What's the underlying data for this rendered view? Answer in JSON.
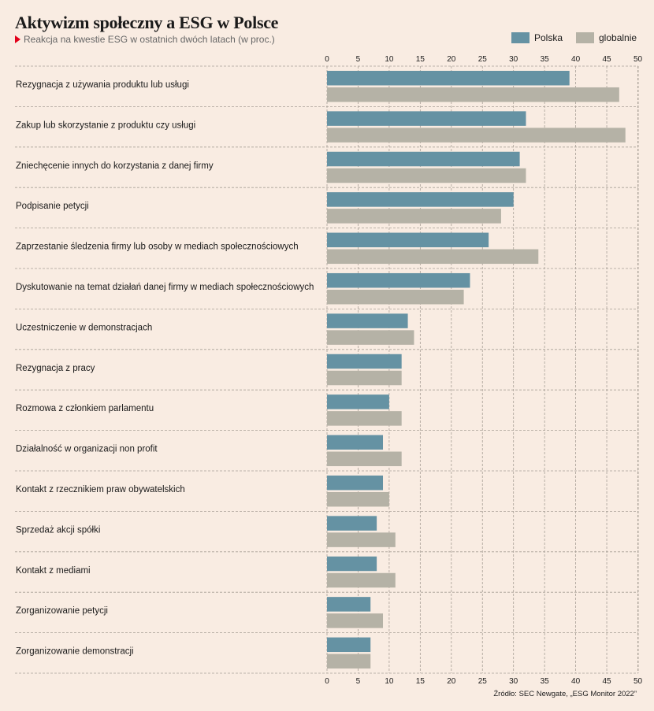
{
  "title": "Aktywizm społeczny a ESG w Polsce",
  "subtitle": "Reakcja na kwestie ESG w ostatnich dwóch latach (w proc.)",
  "source": "Źródło: SEC Newgate, „ESG Monitor 2022”",
  "colors": {
    "polska": "#6592a3",
    "globalnie": "#b5b2a6",
    "background": "#f9ece2",
    "accent": "#e2001a"
  },
  "chart_data": {
    "type": "bar",
    "orientation": "horizontal",
    "title": "Aktywizm społeczny a ESG w Polsce",
    "subtitle": "Reakcja na kwestie ESG w ostatnich dwóch latach (w proc.)",
    "xlim": [
      0,
      50
    ],
    "ticks": [
      "0",
      "5",
      "10",
      "15",
      "20",
      "25",
      "30",
      "35",
      "40",
      "45",
      "50"
    ],
    "legend_position": "top-right",
    "grid": true,
    "categories": [
      "Rezygnacja z używania produktu lub usługi",
      "Zakup lub skorzystanie z produktu czy usługi",
      "Zniechęcenie innych do korzystania z danej firmy",
      "Podpisanie petycji",
      "Zaprzestanie śledzenia firmy lub osoby w mediach społecznościowych",
      "Dyskutowanie na temat działań danej firmy w mediach społecznościowych",
      "Uczestniczenie w demonstracjach",
      "Rezygnacja z pracy",
      "Rozmowa z członkiem parlamentu",
      "Działalność w organizacji non profit",
      "Kontakt z rzecznikiem praw obywatelskich",
      "Sprzedaż akcji spółki",
      "Kontakt z mediami",
      "Zorganizowanie petycji",
      "Zorganizowanie demonstracji"
    ],
    "series": [
      {
        "name": "Polska",
        "values": [
          39,
          32,
          31,
          30,
          26,
          23,
          13,
          12,
          10,
          9,
          9,
          8,
          8,
          7,
          7
        ]
      },
      {
        "name": "globalnie",
        "values": [
          47,
          48,
          32,
          28,
          34,
          22,
          14,
          12,
          12,
          12,
          10,
          11,
          11,
          9,
          7
        ]
      }
    ]
  }
}
